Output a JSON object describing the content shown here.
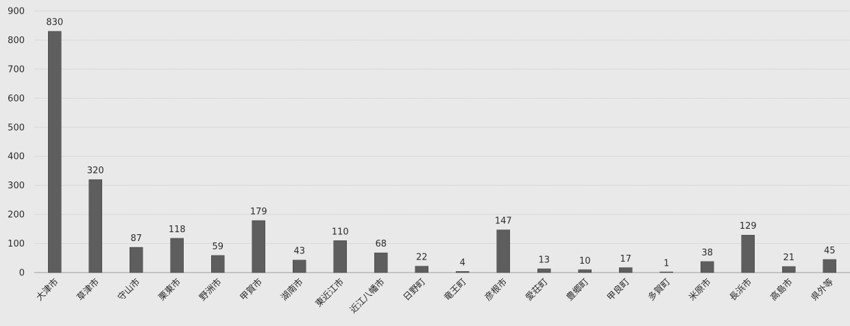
{
  "chart_data": {
    "type": "bar",
    "title": "",
    "xlabel": "",
    "ylabel": "",
    "categories": [
      "大津市",
      "草津市",
      "守山市",
      "栗東市",
      "野洲市",
      "甲賀市",
      "湖南市",
      "東近江市",
      "近江八幡市",
      "日野町",
      "竜王町",
      "彦根市",
      "愛荘町",
      "豊郷町",
      "甲良町",
      "多賀町",
      "米原市",
      "長浜市",
      "高島市",
      "県外等"
    ],
    "values": [
      830,
      320,
      87,
      118,
      59,
      179,
      43,
      110,
      68,
      22,
      4,
      147,
      13,
      10,
      17,
      1,
      38,
      129,
      21,
      45
    ],
    "ylim": [
      0,
      900
    ],
    "yticks": [
      0,
      100,
      200,
      300,
      400,
      500,
      600,
      700,
      800,
      900
    ],
    "grid": true,
    "legend": "none",
    "data_labels": true
  },
  "colors": {
    "bar": "#5e5e5e",
    "bar_edge": "#3f3f3f",
    "background": "#e9e9e9",
    "grid": "#c8c8c8",
    "text": "#2b2b2b"
  }
}
